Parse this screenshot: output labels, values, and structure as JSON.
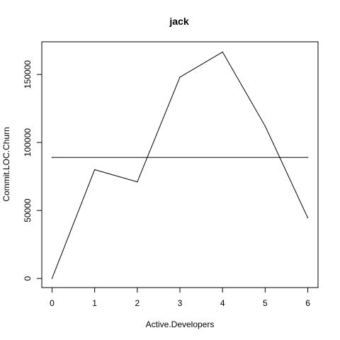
{
  "chart_data": {
    "type": "line",
    "title": "jack",
    "xlabel": "Active.Developers",
    "ylabel": "Commit.LOC.Churn",
    "xlim": [
      -0.24,
      6.24
    ],
    "ylim": [
      -6700,
      174000
    ],
    "x_ticks": [
      0,
      1,
      2,
      3,
      4,
      5,
      6
    ],
    "x_tick_labels": [
      "0",
      "1",
      "2",
      "3",
      "4",
      "5",
      "6"
    ],
    "y_ticks": [
      0,
      50000,
      100000,
      150000
    ],
    "y_tick_labels": [
      "0",
      "50000",
      "100000",
      "150000"
    ],
    "grid": false,
    "series": [
      {
        "x": [
          0,
          1,
          2,
          3,
          4,
          5,
          6
        ],
        "values": [
          0,
          80000,
          71000,
          148000,
          166500,
          112000,
          44500
        ]
      },
      {
        "x": [
          0,
          6
        ],
        "values": [
          89000,
          89000
        ]
      }
    ],
    "colors": {
      "line": "#000000",
      "axis": "#000000",
      "background": "#ffffff"
    }
  }
}
